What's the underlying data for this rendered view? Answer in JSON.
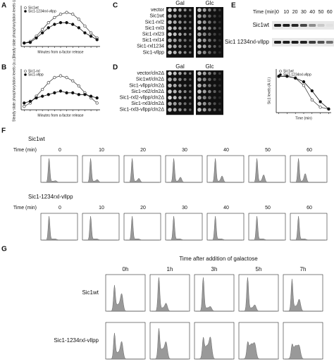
{
  "panels": {
    "a": {
      "label": "A",
      "type": "line",
      "xlabel": "Minutes from α-factor release",
      "ylabel": "Steady state phosphorylation levels (a.u.)",
      "x": [
        0,
        10,
        20,
        30,
        40,
        50,
        60,
        70,
        80,
        90,
        100,
        110,
        120
      ],
      "xlim": [
        -5,
        125
      ],
      "ylim": [
        0,
        1.2
      ],
      "series": [
        {
          "name": "Sic1wt",
          "color": "#444444",
          "marker": "open",
          "values": [
            0.1,
            0.15,
            0.3,
            0.5,
            0.7,
            0.85,
            0.95,
            1.0,
            0.95,
            0.8,
            0.6,
            0.4,
            0.25
          ]
        },
        {
          "name": "Sic1-1234rxl-vllpp",
          "color": "#111111",
          "marker": "filled",
          "values": [
            0.1,
            0.12,
            0.25,
            0.4,
            0.55,
            0.65,
            0.7,
            0.7,
            0.65,
            0.55,
            0.4,
            0.3,
            0.2
          ]
        }
      ]
    },
    "b": {
      "label": "B",
      "type": "line",
      "xlabel": "Minutes from α-factor release",
      "ylabel": "Steady state phosphorylation levels (a.u.)",
      "x": [
        0,
        10,
        20,
        30,
        40,
        50,
        60,
        70,
        80,
        90,
        100,
        110,
        120
      ],
      "xlim": [
        -5,
        125
      ],
      "ylim": [
        0,
        1.2
      ],
      "series": [
        {
          "name": "Sic1-rxl",
          "color": "#444444",
          "marker": "open",
          "values": [
            0.1,
            0.2,
            0.4,
            0.6,
            0.8,
            0.95,
            1.0,
            0.95,
            0.85,
            0.7,
            0.5,
            0.35,
            0.2
          ]
        },
        {
          "name": "Sic1-vllpp",
          "color": "#111111",
          "marker": "filled",
          "values": [
            0.2,
            0.25,
            0.35,
            0.4,
            0.45,
            0.5,
            0.55,
            0.5,
            0.5,
            0.45,
            0.45,
            0.4,
            0.35
          ]
        }
      ]
    },
    "c": {
      "label": "C",
      "headers": [
        "Gal",
        "Glc"
      ],
      "rows": [
        "vector",
        "Sic1wt",
        "Sic1-rxl2",
        "Sic1-rxl3",
        "Sic1-rxl23",
        "Sic1-rxl14",
        "Sic1-rxl1234",
        "Sic1-vllpp"
      ]
    },
    "d": {
      "label": "D",
      "headers": [
        "Gal",
        "Glc"
      ],
      "rows": [
        "vector/cln2Δ",
        "Sic1wt/cln2Δ",
        "Sic1-vllpp/cln2Δ",
        "Sic1-rxl2/cln2Δ",
        "Sic1-rxl2-vllpp/cln2Δ",
        "Sic1-rxl3/cln2Δ",
        "Sic1-rxl3-vllpp/cln2Δ"
      ]
    },
    "e": {
      "label": "E",
      "time_label": "Time (min)",
      "times": [
        0,
        10,
        20,
        30,
        40,
        50,
        60
      ],
      "blots": [
        "Sic1wt",
        "Sic1 1234rxl-vllpp"
      ],
      "xlabel": "Time (min)",
      "chart": {
        "type": "line",
        "ylabel": "Sic1 levels (A.U.)",
        "x": [
          0,
          10,
          20,
          30,
          40,
          50,
          60
        ],
        "xlim": [
          -3,
          63
        ],
        "ylim": [
          0,
          1.2
        ],
        "series": [
          {
            "name": "Sic1wt",
            "color": "#444444",
            "marker": "open",
            "values": [
              1,
              1,
              0.95,
              0.75,
              0.35,
              0.15,
              0.1
            ]
          },
          {
            "name": "Sic1-1234rxl-vllpp",
            "color": "#111111",
            "marker": "filled",
            "values": [
              1,
              1,
              0.95,
              0.85,
              0.6,
              0.3,
              0.1
            ]
          }
        ]
      }
    },
    "f": {
      "label": "F",
      "time_label": "Time (min)",
      "times": [
        0,
        10,
        20,
        30,
        40,
        50,
        60
      ],
      "rows": [
        "Sic1wt",
        "Sic1-1234rxl-vllpp"
      ]
    },
    "g": {
      "label": "G",
      "title": "Time after addition of galactose",
      "times": [
        "0h",
        "1h",
        "3h",
        "5h",
        "7h"
      ],
      "rows": [
        "Sic1wt",
        "Sic1-1234rxl-vllpp"
      ]
    }
  }
}
